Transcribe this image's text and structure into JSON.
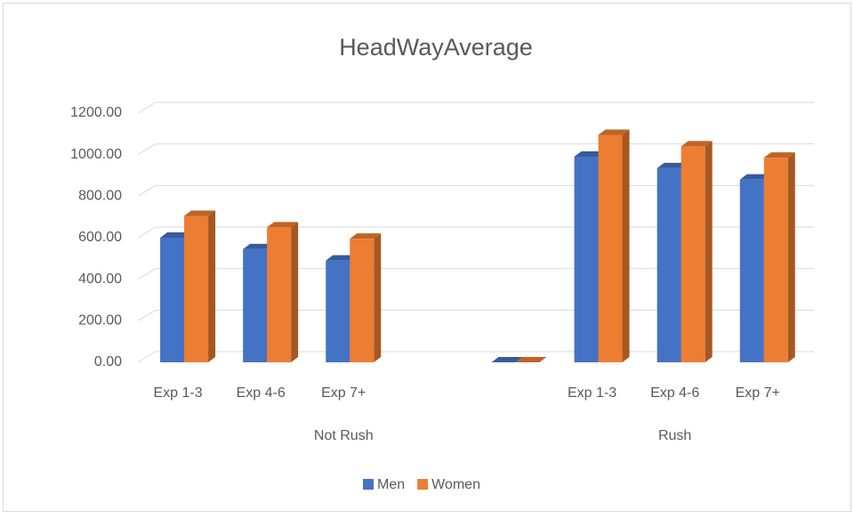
{
  "chart_data": {
    "type": "bar3d",
    "title": "HeadWayAverage",
    "categories": [
      "Exp 1-3",
      "Exp 4-6",
      "Exp 7+",
      null,
      null,
      "Exp 1-3",
      "Exp 4-6",
      "Exp 7+"
    ],
    "groups": [
      {
        "name": "Not Rush",
        "span": [
          0,
          4
        ]
      },
      {
        "name": "Rush",
        "span": [
          5,
          7
        ]
      }
    ],
    "series": [
      {
        "name": "Men",
        "color": "#4472c4",
        "values": [
          600,
          545,
          490,
          null,
          0,
          990,
          935,
          880
        ]
      },
      {
        "name": "Women",
        "color": "#ed7d31",
        "values": [
          705,
          650,
          595,
          null,
          0,
          1095,
          1040,
          985
        ]
      }
    ],
    "ylim": [
      0,
      1200
    ],
    "yticks": [
      {
        "value": 0,
        "label": "0.00"
      },
      {
        "value": 200,
        "label": "200.00"
      },
      {
        "value": 400,
        "label": "400.00"
      },
      {
        "value": 600,
        "label": "600.00"
      },
      {
        "value": 800,
        "label": "800.00"
      },
      {
        "value": 1000,
        "label": "1000.00"
      },
      {
        "value": 1200,
        "label": "1200.00"
      }
    ],
    "grid": true,
    "legend": "bottom"
  }
}
